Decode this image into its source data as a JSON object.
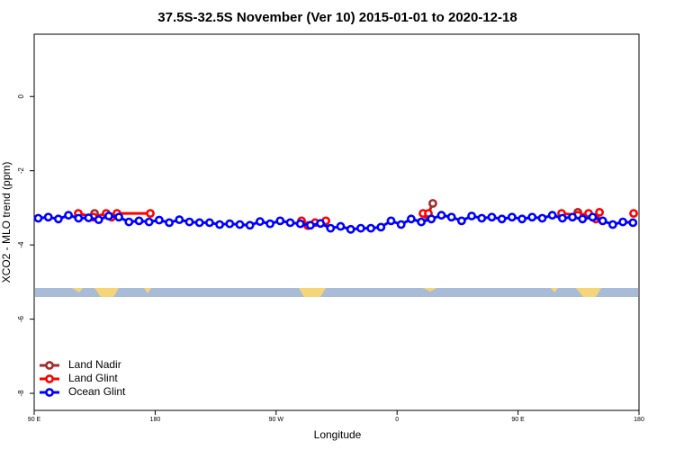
{
  "chart_data": {
    "type": "line",
    "title": "37.5S-32.5S November (Ver 10)   2015-01-01 to 2020-12-18",
    "x_label": "Longitude",
    "y_label": "XCO2 - MLO trend (ppm)",
    "xlim": [
      90,
      540
    ],
    "ylim": [
      -8.46,
      1.68
    ],
    "xticks": [
      {
        "value": 90,
        "label": "90 E"
      },
      180,
      {
        "value": 270,
        "label": "90 W"
      },
      {
        "value": 360,
        "label": "0"
      },
      {
        "value": 450,
        "label": "90 E"
      },
      {
        "value": 540,
        "label": "180"
      }
    ],
    "yticks": [
      0,
      -2,
      -4,
      -6,
      -8
    ],
    "legend": "bottom-left",
    "series": [
      {
        "name": "Land Nadir",
        "color": "#a52a2a",
        "x": [
          134.9,
          null,
          382.6,
          386.6,
          null,
          494.5
        ],
        "values": [
          -3.15,
          null,
          -3.2,
          -2.88,
          null,
          -3.12
        ]
      },
      {
        "name": "Land Glint",
        "color": "#ff0000",
        "x": [
          122.8,
          134.2,
          143.6,
          147.6,
          151.6,
          176.4,
          null,
          288.9,
          293.6,
          299,
          307,
          null,
          379.3,
          383.3,
          null,
          482.4,
          494.5,
          502.5,
          507.9,
          510.6,
          null,
          536
        ],
        "values": [
          -3.15,
          -3.25,
          -3.15,
          -3.25,
          -3.15,
          -3.15,
          null,
          -3.35,
          -3.48,
          -3.4,
          -3.35,
          null,
          -3.15,
          -3.15,
          null,
          -3.15,
          -3.2,
          -3.15,
          -3.3,
          -3.12,
          null,
          -3.15
        ]
      },
      {
        "name": "Ocean Glint",
        "color": "#0000ff",
        "x": [
          93,
          100.5,
          108,
          115.5,
          123,
          130.5,
          138,
          145.5,
          153,
          160.5,
          168,
          175.5,
          183,
          190.5,
          198,
          205.5,
          213,
          220.5,
          228,
          235.5,
          243,
          250.5,
          258,
          265.5,
          273,
          280.5,
          288,
          295.5,
          303,
          310.5,
          318,
          325.5,
          333,
          340.5,
          348,
          355.5,
          363,
          370.5,
          378,
          385.5,
          393,
          400.5,
          408,
          415.5,
          423,
          430.5,
          438,
          445.5,
          453,
          460.5,
          468,
          475.5,
          483,
          490.5,
          498,
          505.5,
          513,
          520.5,
          528,
          535.5
        ],
        "values": [
          -3.28,
          -3.25,
          -3.3,
          -3.2,
          -3.28,
          -3.27,
          -3.32,
          -3.22,
          -3.25,
          -3.38,
          -3.35,
          -3.38,
          -3.33,
          -3.4,
          -3.32,
          -3.38,
          -3.4,
          -3.4,
          -3.45,
          -3.43,
          -3.45,
          -3.47,
          -3.37,
          -3.43,
          -3.35,
          -3.4,
          -3.43,
          -3.47,
          -3.42,
          -3.55,
          -3.5,
          -3.58,
          -3.55,
          -3.55,
          -3.52,
          -3.35,
          -3.45,
          -3.3,
          -3.38,
          -3.3,
          -3.2,
          -3.25,
          -3.35,
          -3.22,
          -3.28,
          -3.25,
          -3.3,
          -3.25,
          -3.3,
          -3.25,
          -3.28,
          -3.2,
          -3.28,
          -3.25,
          -3.3,
          -3.25,
          -3.35,
          -3.45,
          -3.38,
          -3.4
        ]
      }
    ]
  }
}
